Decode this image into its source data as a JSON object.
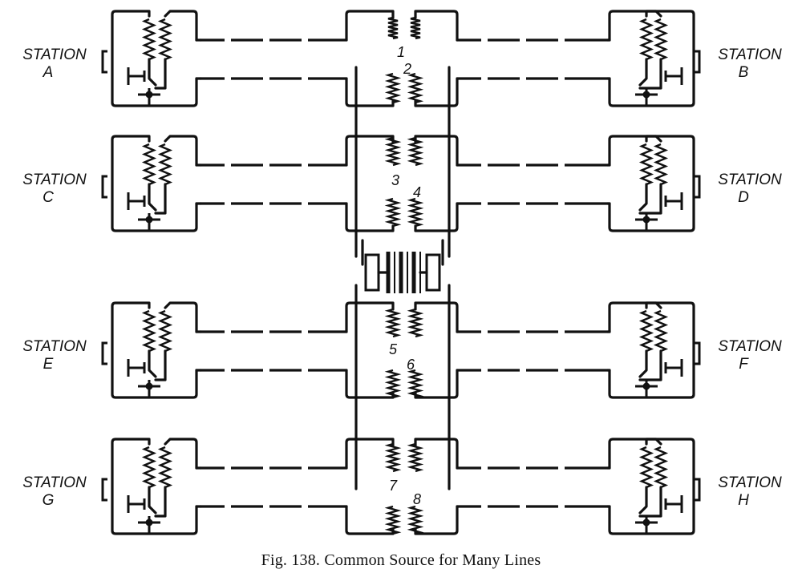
{
  "caption": "Fig. 138.   Common Source for Many Lines",
  "stations": [
    {
      "id": "A",
      "line1": "STATION",
      "line2": "A",
      "side": "left",
      "row": 0
    },
    {
      "id": "B",
      "line1": "STATION",
      "line2": "B",
      "side": "right",
      "row": 0
    },
    {
      "id": "C",
      "line1": "STATION",
      "line2": "C",
      "side": "left",
      "row": 1
    },
    {
      "id": "D",
      "line1": "STATION",
      "line2": "D",
      "side": "right",
      "row": 1
    },
    {
      "id": "E",
      "line1": "STATION",
      "line2": "E",
      "side": "left",
      "row": 2
    },
    {
      "id": "F",
      "line1": "STATION",
      "line2": "F",
      "side": "right",
      "row": 2
    },
    {
      "id": "G",
      "line1": "STATION",
      "line2": "G",
      "side": "left",
      "row": 3
    },
    {
      "id": "H",
      "line1": "STATION",
      "line2": "H",
      "side": "right",
      "row": 3
    }
  ],
  "coil_numbers": [
    "1",
    "2",
    "3",
    "4",
    "5",
    "6",
    "7",
    "8"
  ]
}
